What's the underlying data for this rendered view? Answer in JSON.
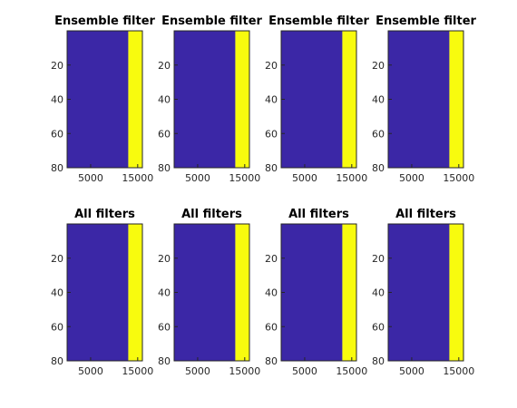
{
  "chart_data": [
    {
      "type": "heatmap",
      "title": "Ensemble filter",
      "x_ticks": [
        "5000",
        "15000"
      ],
      "y_ticks": [
        "20",
        "40",
        "60",
        "80"
      ],
      "xlim": [
        0,
        16000
      ],
      "ylim": [
        0,
        80
      ],
      "yaxis_reversed": true,
      "split_x": 13000,
      "colors": [
        "#3b27a6",
        "#f8fb0e"
      ]
    },
    {
      "type": "heatmap",
      "title": "Ensemble filter",
      "x_ticks": [
        "5000",
        "15000"
      ],
      "y_ticks": [
        "20",
        "40",
        "60",
        "80"
      ],
      "xlim": [
        0,
        16000
      ],
      "ylim": [
        0,
        80
      ],
      "yaxis_reversed": true,
      "split_x": 13000,
      "colors": [
        "#3b27a6",
        "#f8fb0e"
      ]
    },
    {
      "type": "heatmap",
      "title": "Ensemble filter",
      "x_ticks": [
        "5000",
        "15000"
      ],
      "y_ticks": [
        "20",
        "40",
        "60",
        "80"
      ],
      "xlim": [
        0,
        16000
      ],
      "ylim": [
        0,
        80
      ],
      "yaxis_reversed": true,
      "split_x": 13000,
      "colors": [
        "#3b27a6",
        "#f8fb0e"
      ]
    },
    {
      "type": "heatmap",
      "title": "Ensemble filter",
      "x_ticks": [
        "5000",
        "15000"
      ],
      "y_ticks": [
        "20",
        "40",
        "60",
        "80"
      ],
      "xlim": [
        0,
        16000
      ],
      "ylim": [
        0,
        80
      ],
      "yaxis_reversed": true,
      "split_x": 13000,
      "colors": [
        "#3b27a6",
        "#f8fb0e"
      ]
    },
    {
      "type": "heatmap",
      "title": "All filters",
      "x_ticks": [
        "5000",
        "15000"
      ],
      "y_ticks": [
        "20",
        "40",
        "60",
        "80"
      ],
      "xlim": [
        0,
        16000
      ],
      "ylim": [
        0,
        80
      ],
      "yaxis_reversed": true,
      "split_x": 13000,
      "colors": [
        "#3b27a6",
        "#f8fb0e"
      ]
    },
    {
      "type": "heatmap",
      "title": "All filters",
      "x_ticks": [
        "5000",
        "15000"
      ],
      "y_ticks": [
        "20",
        "40",
        "60",
        "80"
      ],
      "xlim": [
        0,
        16000
      ],
      "ylim": [
        0,
        80
      ],
      "yaxis_reversed": true,
      "split_x": 13000,
      "colors": [
        "#3b27a6",
        "#f8fb0e"
      ]
    },
    {
      "type": "heatmap",
      "title": "All filters",
      "x_ticks": [
        "5000",
        "15000"
      ],
      "y_ticks": [
        "20",
        "40",
        "60",
        "80"
      ],
      "xlim": [
        0,
        16000
      ],
      "ylim": [
        0,
        80
      ],
      "yaxis_reversed": true,
      "split_x": 13000,
      "colors": [
        "#3b27a6",
        "#f8fb0e"
      ]
    },
    {
      "type": "heatmap",
      "title": "All filters",
      "x_ticks": [
        "5000",
        "15000"
      ],
      "y_ticks": [
        "20",
        "40",
        "60",
        "80"
      ],
      "xlim": [
        0,
        16000
      ],
      "ylim": [
        0,
        80
      ],
      "yaxis_reversed": true,
      "split_x": 13000,
      "colors": [
        "#3b27a6",
        "#f8fb0e"
      ]
    }
  ]
}
